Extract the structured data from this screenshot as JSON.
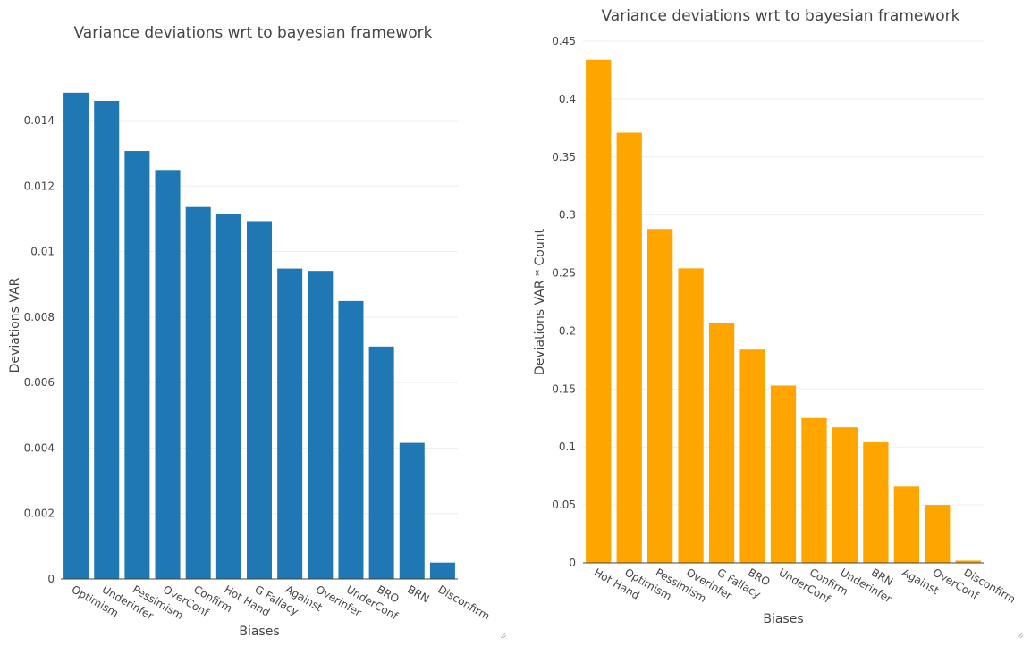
{
  "colors": {
    "left_bar": "#1f77b4",
    "right_bar": "#ffa500",
    "grid": "#eeeeee",
    "text": "#444444",
    "axis_line": "#444444"
  },
  "chart_data": [
    {
      "type": "bar",
      "title": "Variance deviations wrt to bayesian framework",
      "xlabel": "Biases",
      "ylabel": "Deviations VAR",
      "ylim": [
        0,
        0.0155
      ],
      "yticks": [
        0,
        0.002,
        0.004,
        0.006,
        0.008,
        0.01,
        0.012,
        0.014
      ],
      "ytick_labels": [
        "0",
        "0.002",
        "0.004",
        "0.006",
        "0.008",
        "0.01",
        "0.012",
        "0.014"
      ],
      "grid": true,
      "categories": [
        "Optimism",
        "Underinfer",
        "Pessimism",
        "OverConf",
        "Confirm",
        "Hot Hand",
        "G Fallacy",
        "Against",
        "Overinfer",
        "UnderConf",
        "BRO",
        "BRN",
        "Disconfirm"
      ],
      "values": [
        0.01485,
        0.0146,
        0.01307,
        0.01249,
        0.01136,
        0.01114,
        0.01093,
        0.00948,
        0.00941,
        0.00849,
        0.0071,
        0.00416,
        0.0005
      ]
    },
    {
      "type": "bar",
      "title": "Variance deviations wrt to bayesian framework",
      "xlabel": "Biases",
      "ylabel": "Deviations VAR * Count",
      "ylim": [
        0,
        0.45
      ],
      "yticks": [
        0,
        0.05,
        0.1,
        0.15,
        0.2,
        0.25,
        0.3,
        0.35,
        0.4,
        0.45
      ],
      "ytick_labels": [
        "0",
        "0.05",
        "0.1",
        "0.15",
        "0.2",
        "0.25",
        "0.3",
        "0.35",
        "0.4",
        "0.45"
      ],
      "grid": true,
      "categories": [
        "Hot Hand",
        "Optimism",
        "Pessimism",
        "Overinfer",
        "G Fallacy",
        "BRO",
        "UnderConf",
        "Confirm",
        "Underinfer",
        "BRN",
        "Against",
        "OverConf",
        "Disconfirm"
      ],
      "values": [
        0.434,
        0.371,
        0.288,
        0.254,
        0.207,
        0.184,
        0.153,
        0.125,
        0.117,
        0.104,
        0.066,
        0.05,
        0.002
      ]
    }
  ]
}
